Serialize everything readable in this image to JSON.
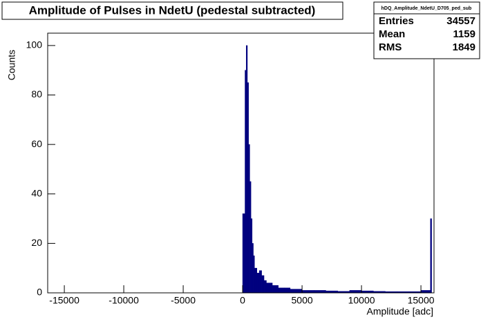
{
  "chart_data": {
    "type": "histogram",
    "title": "Amplitude of Pulses in NdetU (pedestal subtracted)",
    "x_label": "Amplitude [adc]",
    "y_label": "Counts",
    "stats": {
      "name": "hDQ_Amplitude_NdetU_D705_ped_sub",
      "rows": [
        [
          "Entries",
          "34557"
        ],
        [
          "Mean",
          "1159"
        ],
        [
          "RMS",
          "1849"
        ]
      ]
    },
    "color": "#00007f",
    "bins": [
      -400,
      -200,
      0,
      200,
      300,
      400,
      500,
      600,
      700,
      800,
      900,
      1000,
      1200,
      1400,
      1600,
      1800,
      2000,
      2500,
      3000,
      3500,
      4000,
      5000,
      6000,
      7000,
      8000,
      9000,
      10000,
      11000,
      12000,
      13000,
      14000,
      15000,
      15800,
      15900,
      16000
    ],
    "values": [
      0,
      0,
      32,
      90,
      100,
      85,
      60,
      45,
      30,
      20,
      15,
      10,
      8,
      9,
      7,
      5,
      4,
      3,
      2,
      2,
      1.5,
      1,
      1,
      0.8,
      0.6,
      1,
      0.8,
      0.6,
      0.5,
      0.5,
      0.5,
      1,
      30,
      0
    ],
    "xlim": [
      -16400,
      16100
    ],
    "ylim": [
      0,
      105
    ],
    "xticks": [
      -15000,
      -10000,
      -5000,
      0,
      5000,
      10000,
      15000
    ],
    "yticks": [
      0,
      20,
      40,
      60,
      80,
      100
    ]
  }
}
